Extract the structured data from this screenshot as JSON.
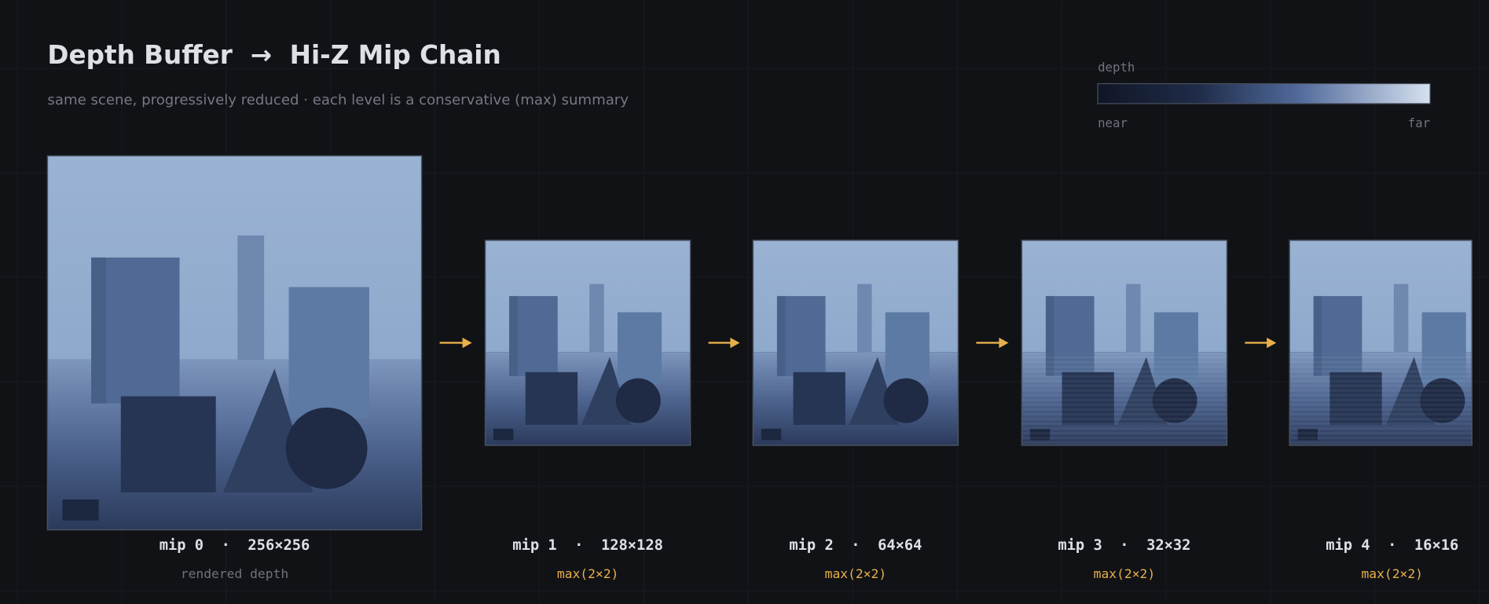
{
  "header": {
    "title": "Depth Buffer  →  Hi-Z Mip Chain",
    "subtitle": "same scene, progressively reduced · each level is a conservative (max) summary"
  },
  "legend": {
    "label": "depth",
    "near": "near",
    "far": "far"
  },
  "panels": [
    {
      "label": "mip 0  ·  256×256",
      "note": "rendered depth"
    },
    {
      "label": "mip 1  ·  128×128",
      "note": "max(2×2)"
    },
    {
      "label": "mip 2  ·  64×64",
      "note": "max(2×2)"
    },
    {
      "label": "mip 3  ·  32×32",
      "note": "max(2×2)"
    },
    {
      "label": "mip 4  ·  16×16",
      "note": "max(2×2)"
    }
  ]
}
